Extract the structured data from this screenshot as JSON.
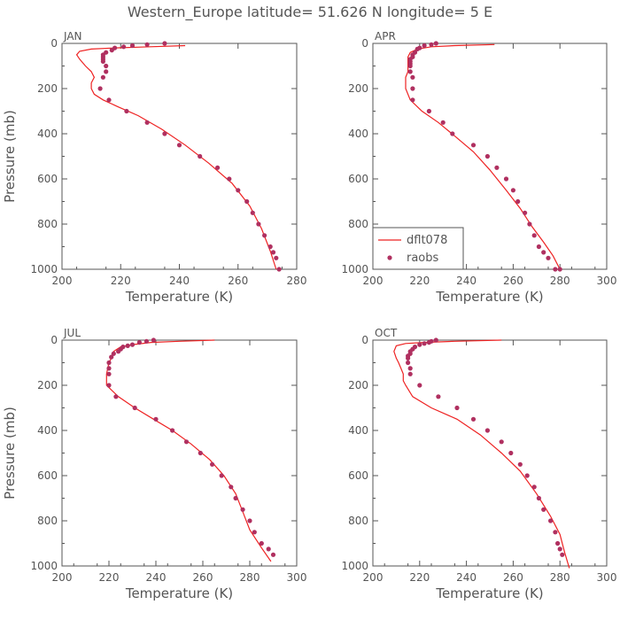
{
  "title": "Western_Europe  latitude= 51.626 N longitude= 5 E",
  "colors": {
    "model": "#ee2222",
    "obs": "#b03060",
    "axis": "#555555"
  },
  "chart_data": [
    {
      "type": "line",
      "panel": "JAN",
      "xlabel": "Temperature (K)",
      "ylabel": "Pressure (mb)",
      "xlim": [
        200,
        280
      ],
      "xticks": [
        "200",
        "220",
        "240",
        "260",
        "280"
      ],
      "ylim": [
        1000,
        0
      ],
      "yticks": [
        "0",
        "200",
        "400",
        "600",
        "800",
        "1000"
      ],
      "series": [
        {
          "name": "dflt078",
          "kind": "line",
          "temperature": [
            242,
            230,
            218,
            210,
            206,
            205,
            206,
            208,
            210,
            211,
            210,
            210,
            211,
            214,
            219,
            226,
            234,
            242,
            250,
            258,
            264,
            268,
            271,
            273
          ],
          "pressure": [
            10,
            15,
            20,
            25,
            35,
            50,
            70,
            100,
            125,
            150,
            175,
            200,
            225,
            250,
            280,
            320,
            380,
            450,
            530,
            620,
            720,
            820,
            920,
            1000
          ]
        },
        {
          "name": "raobs",
          "kind": "scatter",
          "temperature": [
            235,
            229,
            224,
            221,
            218,
            217,
            215,
            214,
            214,
            214,
            214,
            215,
            215,
            214,
            213,
            216,
            222,
            229,
            235,
            240,
            247,
            253,
            257,
            260,
            263,
            265,
            267,
            269,
            271,
            272,
            273,
            274
          ],
          "pressure": [
            0,
            5,
            10,
            15,
            20,
            30,
            40,
            50,
            60,
            70,
            80,
            100,
            125,
            150,
            200,
            250,
            300,
            350,
            400,
            450,
            500,
            550,
            600,
            650,
            700,
            750,
            800,
            850,
            900,
            925,
            950,
            1000
          ]
        }
      ]
    },
    {
      "type": "line",
      "panel": "APR",
      "xlabel": "Temperature (K)",
      "ylabel": "",
      "xlim": [
        200,
        300
      ],
      "xticks": [
        "200",
        "220",
        "240",
        "260",
        "280",
        "300"
      ],
      "ylim": [
        1000,
        0
      ],
      "yticks": [
        "0",
        "200",
        "400",
        "600",
        "800",
        "1000"
      ],
      "legend": {
        "position": "bottom-left",
        "entries": [
          "dflt078",
          "raobs"
        ]
      },
      "series": [
        {
          "name": "dflt078",
          "kind": "line",
          "temperature": [
            252,
            235,
            225,
            219,
            216,
            215,
            215,
            215,
            215,
            214,
            214,
            214,
            216,
            221,
            228,
            235,
            243,
            250,
            257,
            263,
            268,
            273,
            277,
            280
          ],
          "pressure": [
            5,
            10,
            15,
            25,
            40,
            60,
            80,
            100,
            125,
            150,
            175,
            200,
            250,
            300,
            350,
            410,
            480,
            560,
            650,
            730,
            810,
            880,
            940,
            1000
          ]
        },
        {
          "name": "raobs",
          "kind": "scatter",
          "temperature": [
            227,
            225,
            222,
            220,
            219,
            218,
            217,
            217,
            216,
            216,
            216,
            216,
            216,
            217,
            217,
            217,
            224,
            230,
            234,
            243,
            249,
            253,
            257,
            260,
            262,
            265,
            267,
            269,
            271,
            273,
            275,
            278,
            280
          ],
          "pressure": [
            0,
            5,
            10,
            20,
            25,
            40,
            50,
            60,
            70,
            80,
            90,
            100,
            125,
            150,
            200,
            250,
            300,
            350,
            400,
            450,
            500,
            550,
            600,
            650,
            700,
            750,
            800,
            850,
            900,
            925,
            950,
            1000,
            1000
          ]
        }
      ]
    },
    {
      "type": "line",
      "panel": "JUL",
      "xlabel": "Temperature (K)",
      "ylabel": "Pressure (mb)",
      "xlim": [
        200,
        300
      ],
      "xticks": [
        "200",
        "220",
        "240",
        "260",
        "280",
        "300"
      ],
      "ylim": [
        1000,
        0
      ],
      "yticks": [
        "0",
        "200",
        "400",
        "600",
        "800",
        "1000"
      ],
      "series": [
        {
          "name": "dflt078",
          "kind": "line",
          "temperature": [
            265,
            250,
            238,
            230,
            225,
            222,
            221,
            220,
            219,
            219,
            219,
            220,
            224,
            231,
            239,
            247,
            255,
            263,
            269,
            274,
            277,
            280,
            285,
            289
          ],
          "pressure": [
            0,
            5,
            10,
            20,
            30,
            50,
            80,
            100,
            150,
            180,
            200,
            210,
            250,
            300,
            350,
            400,
            460,
            530,
            600,
            680,
            760,
            840,
            920,
            980
          ]
        },
        {
          "name": "raobs",
          "kind": "scatter",
          "temperature": [
            239,
            236,
            233,
            230,
            228,
            226,
            225,
            224,
            222,
            221,
            220,
            220,
            220,
            220,
            223,
            231,
            240,
            247,
            253,
            259,
            264,
            268,
            272,
            274,
            277,
            280,
            282,
            285,
            288,
            290
          ],
          "pressure": [
            0,
            5,
            10,
            20,
            25,
            30,
            40,
            50,
            60,
            75,
            100,
            125,
            150,
            200,
            250,
            300,
            350,
            400,
            450,
            500,
            550,
            600,
            650,
            700,
            750,
            800,
            850,
            900,
            925,
            950
          ]
        }
      ]
    },
    {
      "type": "line",
      "panel": "OCT",
      "xlabel": "Temperature (K)",
      "ylabel": "",
      "xlim": [
        200,
        300
      ],
      "xticks": [
        "200",
        "220",
        "240",
        "260",
        "280",
        "300"
      ],
      "ylim": [
        1000,
        0
      ],
      "yticks": [
        "0",
        "200",
        "400",
        "600",
        "800",
        "1000"
      ],
      "series": [
        {
          "name": "dflt078",
          "kind": "line",
          "temperature": [
            255,
            235,
            222,
            214,
            210,
            209,
            210,
            211,
            212,
            213,
            213,
            214,
            217,
            225,
            236,
            246,
            255,
            263,
            270,
            276,
            280,
            282,
            284
          ],
          "pressure": [
            0,
            5,
            10,
            15,
            25,
            50,
            80,
            100,
            125,
            150,
            180,
            200,
            250,
            300,
            350,
            420,
            500,
            580,
            680,
            780,
            860,
            940,
            1010
          ]
        },
        {
          "name": "raobs",
          "kind": "scatter",
          "temperature": [
            227,
            225,
            224,
            222,
            220,
            218,
            217,
            216,
            216,
            215,
            215,
            215,
            216,
            216,
            220,
            228,
            236,
            243,
            249,
            255,
            259,
            263,
            266,
            269,
            271,
            273,
            276,
            278,
            279,
            280,
            281
          ],
          "pressure": [
            0,
            5,
            10,
            15,
            20,
            30,
            40,
            50,
            60,
            70,
            80,
            100,
            125,
            150,
            200,
            250,
            300,
            350,
            400,
            450,
            500,
            550,
            600,
            650,
            700,
            750,
            800,
            850,
            900,
            925,
            950
          ]
        }
      ]
    }
  ]
}
